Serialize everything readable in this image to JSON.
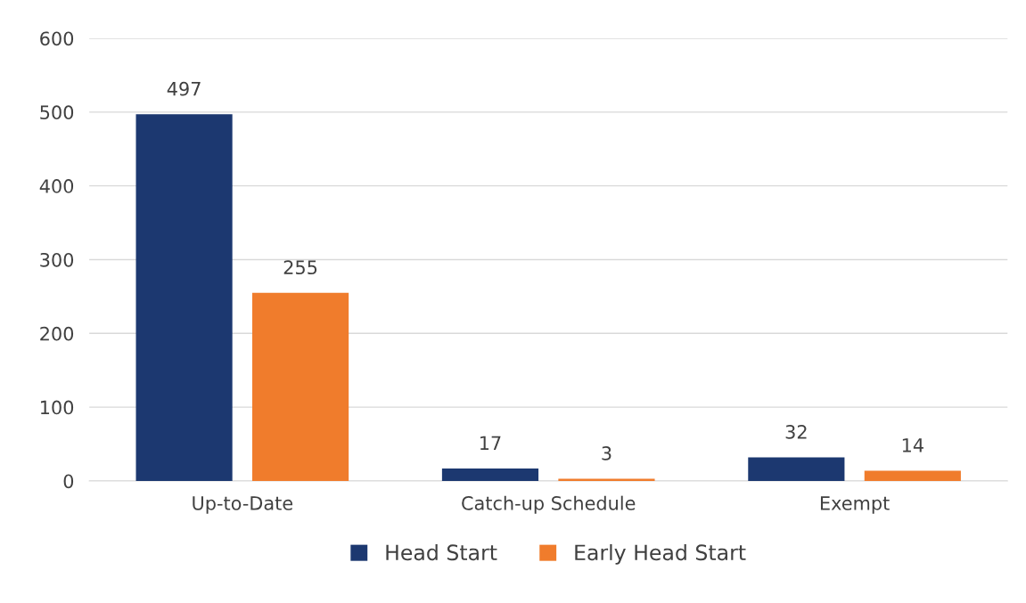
{
  "chart_data": {
    "type": "bar",
    "categories": [
      "Up-to-Date",
      "Catch-up Schedule",
      "Exempt"
    ],
    "series": [
      {
        "name": "Head Start",
        "color": "#1c3870",
        "values": [
          497,
          17,
          32
        ]
      },
      {
        "name": "Early Head Start",
        "color": "#f07c2c",
        "values": [
          255,
          3,
          14
        ]
      }
    ],
    "ylim": [
      0,
      600
    ],
    "yticks": [
      0,
      100,
      200,
      300,
      400,
      500,
      600
    ],
    "grid": "y",
    "legend": "bottom",
    "data_labels": true
  }
}
